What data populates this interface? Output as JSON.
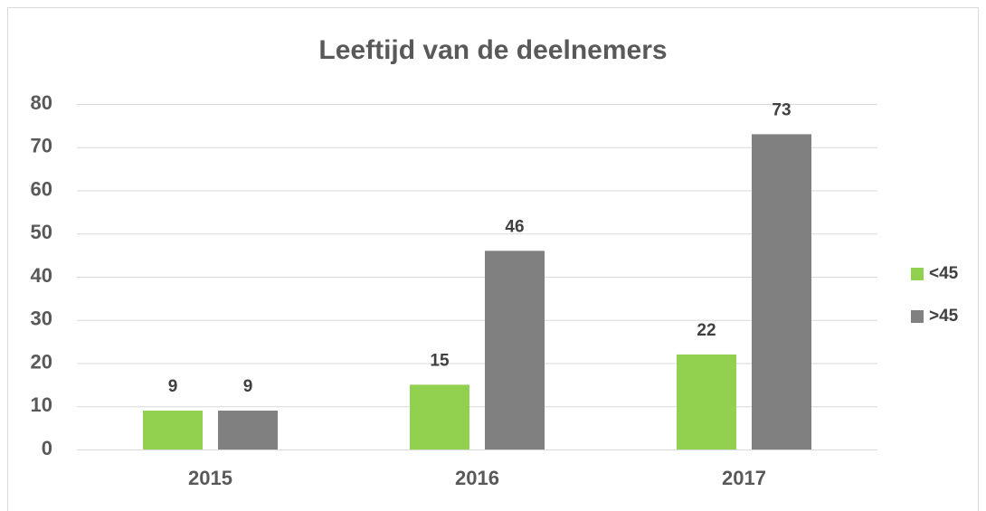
{
  "chart_data": {
    "type": "bar",
    "title": "Leeftijd van de deelnemers",
    "categories": [
      "2015",
      "2016",
      "2017"
    ],
    "series": [
      {
        "name": "<45",
        "color": "#92d050",
        "values": [
          9,
          15,
          22
        ]
      },
      {
        "name": ">45",
        "color": "#808080",
        "values": [
          9,
          46,
          73
        ]
      }
    ],
    "ylim": [
      0,
      80
    ],
    "yticks": [
      0,
      10,
      20,
      30,
      40,
      50,
      60,
      70,
      80
    ],
    "grid": true,
    "legend": "right"
  }
}
